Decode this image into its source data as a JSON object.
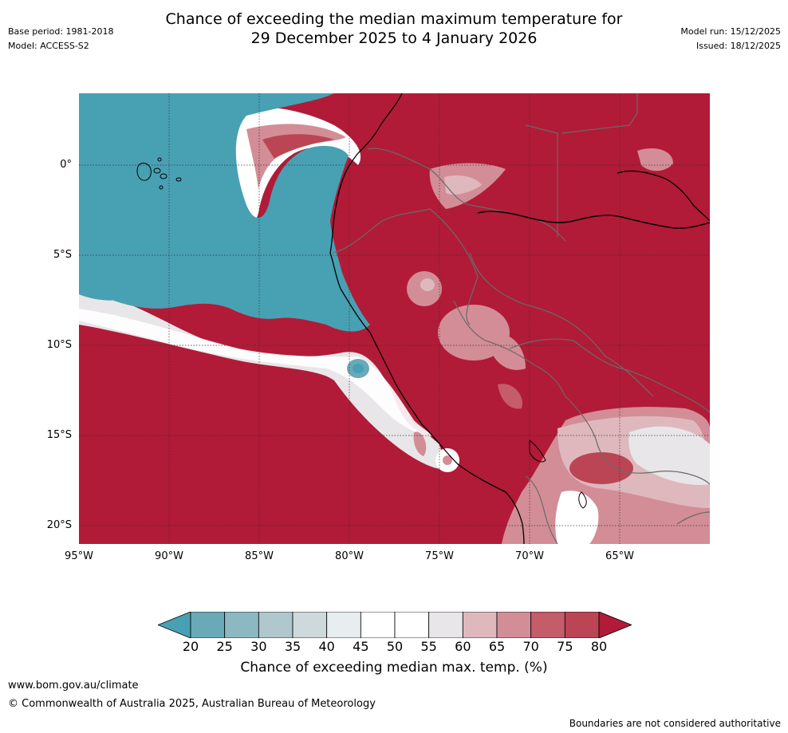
{
  "title_line1": "Chance of exceeding the median maximum temperature for",
  "title_line2": "29 December 2025 to 4 January 2026",
  "base_period": "Base period: 1981-2018",
  "model": "Model: ACCESS-S2",
  "model_run": "Model run: 15/12/2025",
  "issued": "Issued: 18/12/2025",
  "lat_labels": [
    "0°",
    "5°S",
    "10°S",
    "15°S",
    "20°S"
  ],
  "lon_labels": [
    "95°W",
    "90°W",
    "85°W",
    "80°W",
    "75°W",
    "70°W",
    "65°W"
  ],
  "colorbar": {
    "ticks": [
      "20",
      "25",
      "30",
      "35",
      "40",
      "45",
      "50",
      "55",
      "60",
      "65",
      "70",
      "75",
      "80"
    ],
    "colors": [
      "#48a0b3",
      "#6aa9b8",
      "#8cb8c2",
      "#afc7cd",
      "#ced9dc",
      "#e8eef0",
      "#ffffff",
      "#ffffff",
      "#e8e6e8",
      "#dfb8be",
      "#d38d96",
      "#c45c69",
      "#bb4554",
      "#b11b37"
    ],
    "label": "Chance of exceeding median max. temp. (%)"
  },
  "footer_url": "www.bom.gov.au/climate",
  "footer_copyright": "© Commonwealth of Australia 2025, Australian Bureau of Meteorology",
  "disclaimer": "Boundaries are not considered authoritative"
}
